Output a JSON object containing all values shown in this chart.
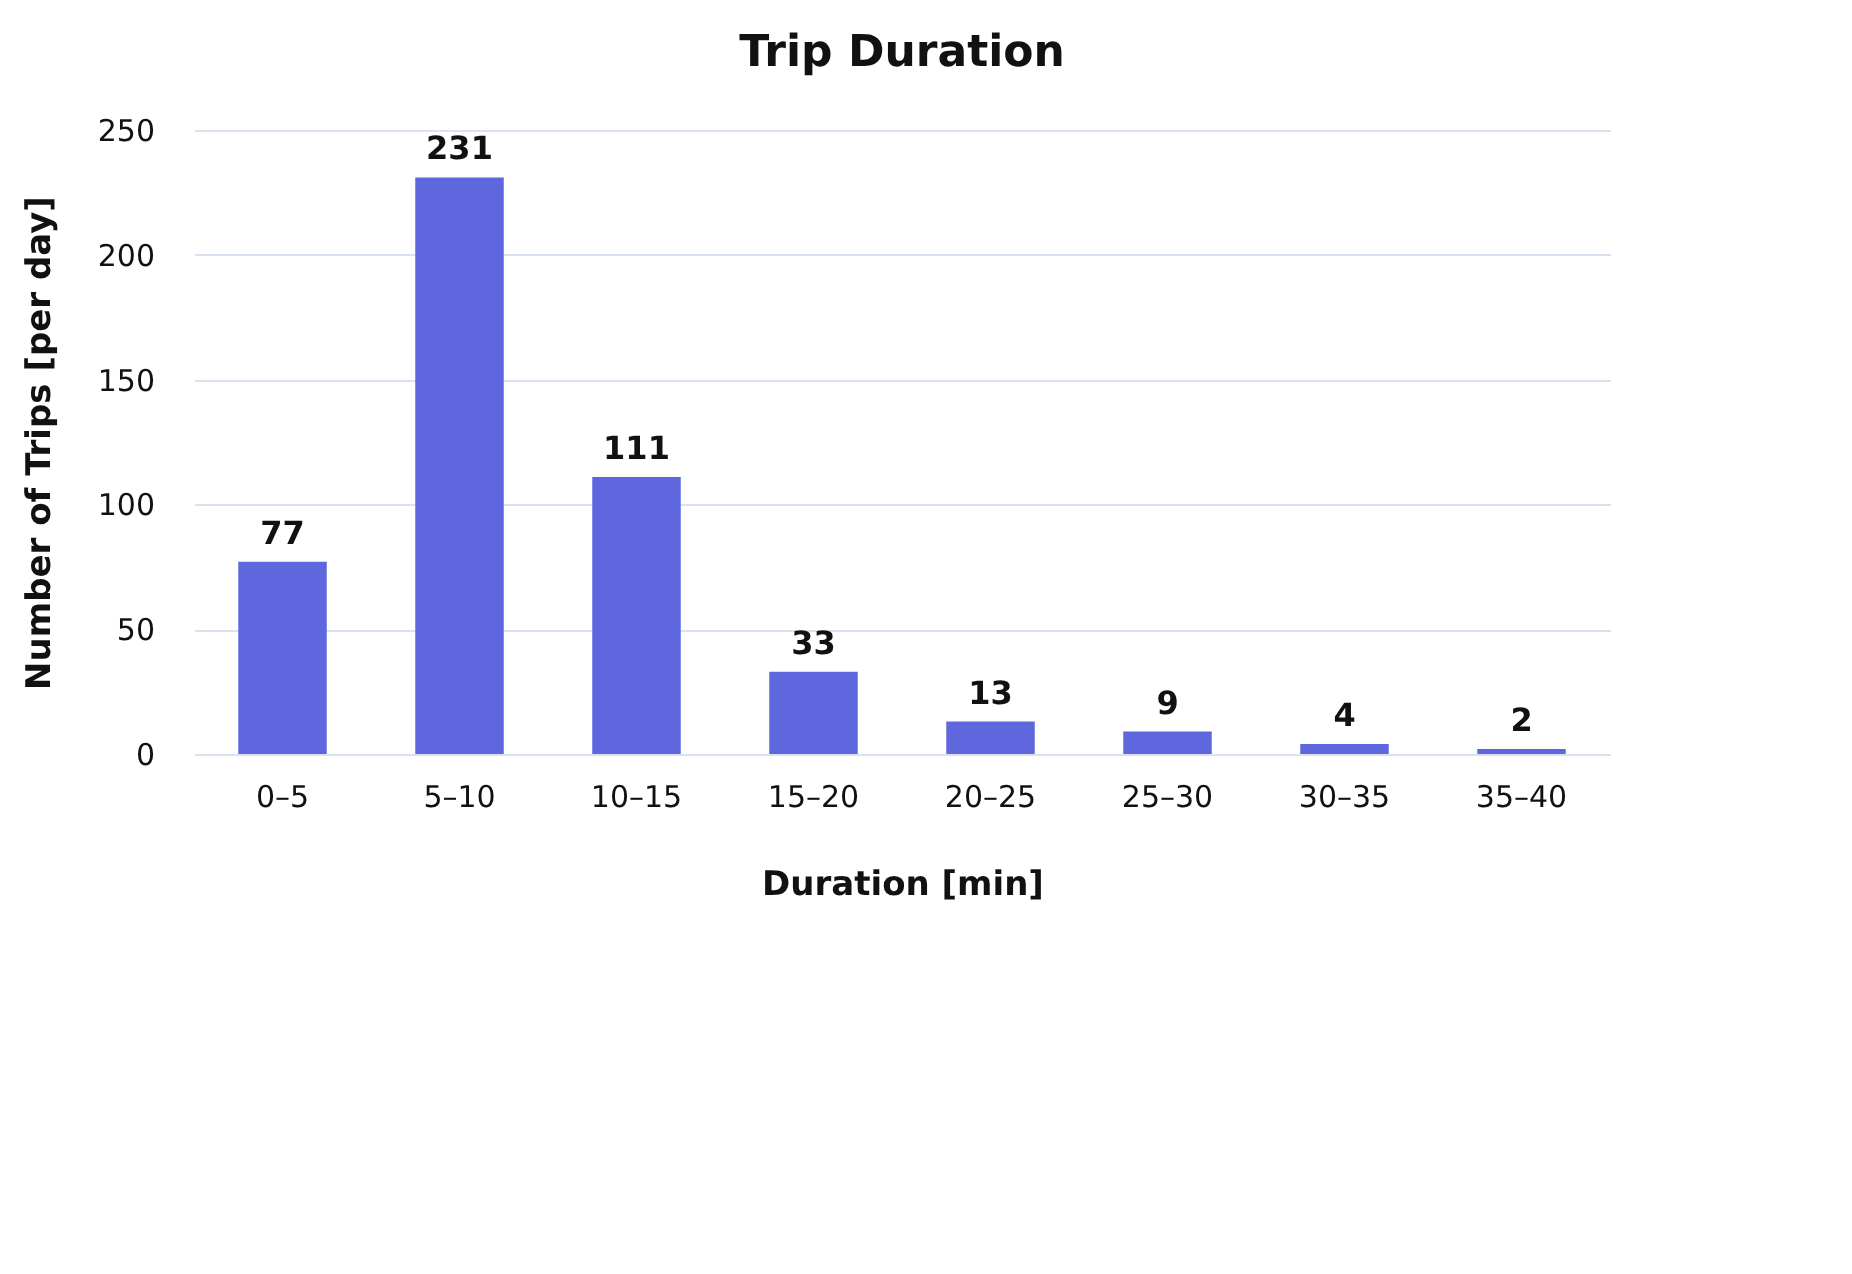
{
  "chart_data": {
    "type": "bar",
    "title": "Trip Duration",
    "xlabel": "Duration [min]",
    "ylabel": "Number of Trips [per day]",
    "categories": [
      "0–5",
      "5–10",
      "10–15",
      "15–20",
      "20–25",
      "25–30",
      "30–35",
      "35–40"
    ],
    "values": [
      77,
      231,
      111,
      33,
      13,
      9,
      4,
      2
    ],
    "color": "#5f67df",
    "ylim": [
      0,
      250
    ],
    "yticks": [
      0,
      50,
      100,
      150,
      200,
      250
    ],
    "grid": "y",
    "data_labels": true
  }
}
